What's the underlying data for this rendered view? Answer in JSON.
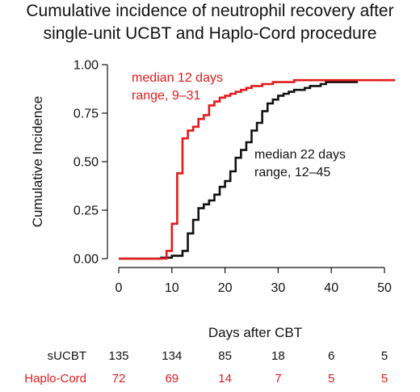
{
  "chart_data": {
    "type": "line",
    "title_lines": [
      "Cumulative incidence of neutrophil recovery after",
      "single-unit UCBT and Haplo-Cord procedure"
    ],
    "xlabel": "Days after CBT",
    "ylabel": "Cumulative Incidence",
    "xlim": [
      0,
      52
    ],
    "ylim": [
      0,
      1
    ],
    "x_ticks": [
      0,
      10,
      20,
      30,
      40,
      50
    ],
    "y_ticks": [
      "0.00",
      "0.25",
      "0.50",
      "0.75",
      "1.00"
    ],
    "y_tick_values": [
      0,
      0.25,
      0.5,
      0.75,
      1.0
    ],
    "grid": false,
    "series": [
      {
        "name": "sUCBT",
        "color": "#111111",
        "step": true,
        "x": [
          0,
          8,
          10,
          12,
          13,
          14,
          15,
          16,
          17,
          18,
          19,
          20,
          21,
          22,
          23,
          24,
          25,
          26,
          27,
          28,
          29,
          30,
          31,
          32,
          33,
          34,
          35,
          36,
          37,
          38,
          39,
          45
        ],
        "y": [
          0,
          0.005,
          0.015,
          0.04,
          0.13,
          0.2,
          0.26,
          0.28,
          0.3,
          0.33,
          0.37,
          0.4,
          0.45,
          0.52,
          0.56,
          0.6,
          0.66,
          0.7,
          0.76,
          0.8,
          0.82,
          0.84,
          0.85,
          0.86,
          0.87,
          0.87,
          0.88,
          0.89,
          0.89,
          0.9,
          0.91,
          0.91
        ]
      },
      {
        "name": "Haplo-Cord",
        "color": "#e41a1c",
        "step": true,
        "x": [
          0,
          9,
          10,
          11,
          12,
          13,
          14,
          15,
          16,
          17,
          18,
          19,
          20,
          21,
          22,
          23,
          24,
          25,
          26,
          27,
          28,
          29,
          30,
          33,
          36,
          52
        ],
        "y": [
          0,
          0.04,
          0.18,
          0.44,
          0.62,
          0.66,
          0.68,
          0.72,
          0.74,
          0.79,
          0.81,
          0.83,
          0.84,
          0.85,
          0.86,
          0.87,
          0.88,
          0.89,
          0.89,
          0.9,
          0.9,
          0.91,
          0.91,
          0.92,
          0.92,
          0.92
        ]
      }
    ],
    "annotations": [
      {
        "lines": [
          "median 12 days",
          "range, 9–31"
        ],
        "color": "#e41a1c"
      },
      {
        "lines": [
          "median 22 days",
          "range, 12–45"
        ],
        "color": "#111111"
      }
    ],
    "risk_table": {
      "rows": [
        {
          "label": "sUCBT",
          "color": "#111111",
          "values": [
            "135",
            "134",
            "85",
            "18",
            "6",
            "5"
          ]
        },
        {
          "label": "Haplo-Cord",
          "color": "#e41a1c",
          "values": [
            "72",
            "69",
            "14",
            "7",
            "5",
            "5"
          ]
        }
      ],
      "at_x": [
        0,
        10,
        20,
        30,
        40,
        50
      ]
    }
  }
}
